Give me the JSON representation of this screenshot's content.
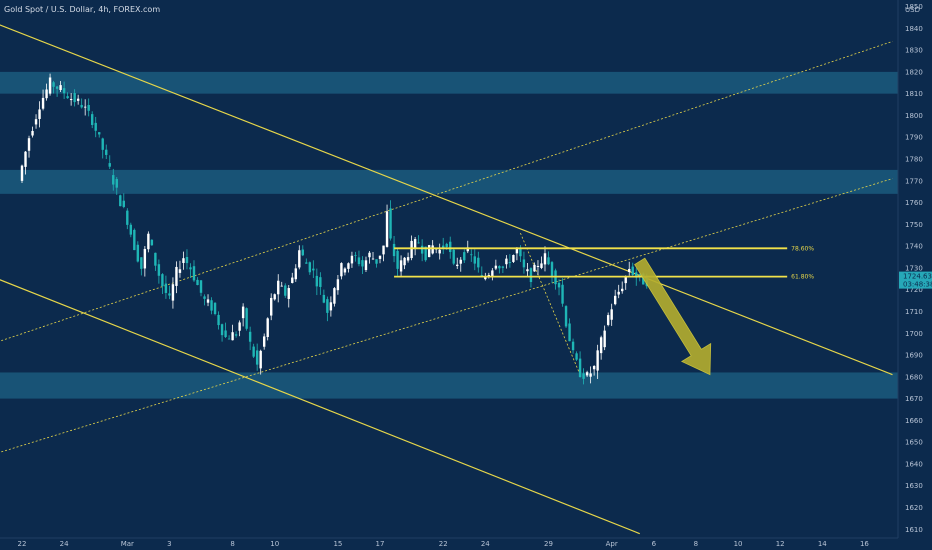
{
  "chart_data": {
    "type": "candlestick",
    "title": "Gold Spot / U.S. Dollar, 4h, FOREX.com",
    "currency": "USD",
    "y_ticks": [
      1610,
      1620,
      1630,
      1640,
      1650,
      1660,
      1670,
      1680,
      1690,
      1700,
      1710,
      1720,
      1730,
      1740,
      1750,
      1760,
      1770,
      1780,
      1790,
      1800,
      1810,
      1820,
      1830,
      1840,
      1850
    ],
    "ylim": [
      1606,
      1853
    ],
    "x_ticks": [
      {
        "label": "22",
        "t": 0
      },
      {
        "label": "24",
        "t": 12
      },
      {
        "label": "Mar",
        "t": 30
      },
      {
        "label": "3",
        "t": 42
      },
      {
        "label": "8",
        "t": 60
      },
      {
        "label": "10",
        "t": 72
      },
      {
        "label": "15",
        "t": 90
      },
      {
        "label": "17",
        "t": 102
      },
      {
        "label": "22",
        "t": 120
      },
      {
        "label": "24",
        "t": 132
      },
      {
        "label": "29",
        "t": 150
      },
      {
        "label": "Apr",
        "t": 168
      },
      {
        "label": "6",
        "t": 180
      },
      {
        "label": "8",
        "t": 192
      },
      {
        "label": "10",
        "t": 204
      },
      {
        "label": "12",
        "t": 216
      },
      {
        "label": "14",
        "t": 228
      },
      {
        "label": "16",
        "t": 240
      }
    ],
    "current_price": "1724.63",
    "countdown": "03:48:38",
    "fib_levels": [
      {
        "label": "78.60%",
        "value": 1739,
        "t_start": 106,
        "t_end": 218
      },
      {
        "label": "61.80%",
        "value": 1726,
        "t_start": 106,
        "t_end": 218
      }
    ],
    "zones": [
      {
        "low": 1810,
        "high": 1820
      },
      {
        "low": 1764,
        "high": 1775
      },
      {
        "low": 1670,
        "high": 1682
      }
    ],
    "trendlines": [
      {
        "style": "solid",
        "t1": -7,
        "p1": 1842,
        "t2": 248,
        "p2": 1681
      },
      {
        "style": "solid",
        "t1": -7,
        "p1": 1725,
        "t2": 176,
        "p2": 1608
      },
      {
        "style": "dashed",
        "t1": -7,
        "p1": 1696,
        "t2": 248,
        "p2": 1834
      },
      {
        "style": "dashed",
        "t1": -7,
        "p1": 1645,
        "t2": 248,
        "p2": 1771
      },
      {
        "style": "dashed",
        "t1": 142,
        "p1": 1746,
        "t2": 159,
        "p2": 1681
      }
    ],
    "arrow": {
      "from_t": 176,
      "from_p": 1733,
      "to_t": 196,
      "to_p": 1681,
      "color": "#b5ae2e"
    },
    "ohlc_points": [
      [
        0,
        1770
      ],
      [
        3,
        1790
      ],
      [
        6,
        1805
      ],
      [
        9,
        1815
      ],
      [
        12,
        1812
      ],
      [
        15,
        1808
      ],
      [
        18,
        1805
      ],
      [
        21,
        1798
      ],
      [
        25,
        1780
      ],
      [
        28,
        1765
      ],
      [
        31,
        1752
      ],
      [
        33,
        1740
      ],
      [
        35,
        1730
      ],
      [
        37,
        1745
      ],
      [
        39,
        1732
      ],
      [
        41,
        1722
      ],
      [
        43,
        1715
      ],
      [
        45,
        1728
      ],
      [
        47,
        1735
      ],
      [
        49,
        1730
      ],
      [
        51,
        1722
      ],
      [
        53,
        1715
      ],
      [
        55,
        1712
      ],
      [
        57,
        1705
      ],
      [
        59,
        1698
      ],
      [
        62,
        1700
      ],
      [
        64,
        1710
      ],
      [
        66,
        1695
      ],
      [
        68,
        1685
      ],
      [
        70,
        1698
      ],
      [
        72,
        1715
      ],
      [
        74,
        1722
      ],
      [
        76,
        1718
      ],
      [
        78,
        1725
      ],
      [
        80,
        1738
      ],
      [
        82,
        1732
      ],
      [
        84,
        1728
      ],
      [
        86,
        1720
      ],
      [
        88,
        1710
      ],
      [
        90,
        1722
      ],
      [
        92,
        1730
      ],
      [
        94,
        1733
      ],
      [
        96,
        1735
      ],
      [
        98,
        1731
      ],
      [
        100,
        1736
      ],
      [
        102,
        1733
      ],
      [
        104,
        1740
      ],
      [
        105,
        1755
      ],
      [
        106,
        1742
      ],
      [
        108,
        1730
      ],
      [
        110,
        1734
      ],
      [
        112,
        1740
      ],
      [
        114,
        1742
      ],
      [
        116,
        1736
      ],
      [
        118,
        1740
      ],
      [
        120,
        1738
      ],
      [
        122,
        1742
      ],
      [
        124,
        1730
      ],
      [
        126,
        1735
      ],
      [
        128,
        1737
      ],
      [
        130,
        1733
      ],
      [
        132,
        1725
      ],
      [
        134,
        1728
      ],
      [
        136,
        1733
      ],
      [
        138,
        1730
      ],
      [
        140,
        1734
      ],
      [
        142,
        1738
      ],
      [
        144,
        1729
      ],
      [
        146,
        1726
      ],
      [
        148,
        1732
      ],
      [
        150,
        1735
      ],
      [
        152,
        1728
      ],
      [
        154,
        1722
      ],
      [
        156,
        1705
      ],
      [
        158,
        1690
      ],
      [
        160,
        1682
      ],
      [
        162,
        1680
      ],
      [
        164,
        1684
      ],
      [
        166,
        1696
      ],
      [
        168,
        1708
      ],
      [
        170,
        1716
      ],
      [
        172,
        1722
      ],
      [
        174,
        1730
      ],
      [
        176,
        1726
      ],
      [
        178,
        1724
      ]
    ]
  }
}
